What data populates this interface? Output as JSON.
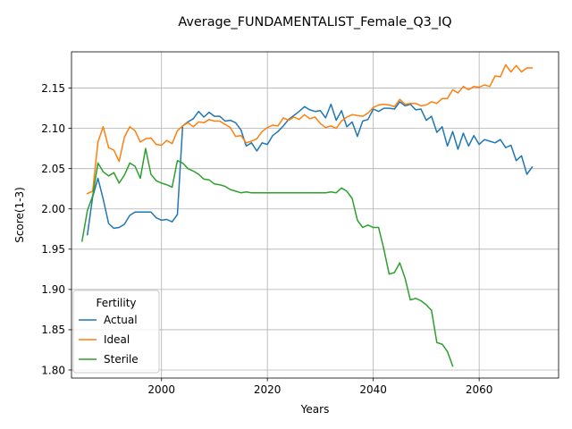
{
  "chart_data": {
    "type": "line",
    "title": "Average_FUNDAMENTALIST_Female_Q3_IQ",
    "xlabel": "Years",
    "ylabel": "Score(1-3)",
    "xlim": [
      1983,
      2075
    ],
    "ylim": [
      1.79,
      2.195
    ],
    "xticks": [
      2000,
      2020,
      2040,
      2060
    ],
    "yticks": [
      1.8,
      1.85,
      1.9,
      1.95,
      2.0,
      2.05,
      2.1,
      2.15
    ],
    "xtick_labels": [
      "2000",
      "2020",
      "2040",
      "2060"
    ],
    "ytick_labels": [
      "1.80",
      "1.85",
      "1.90",
      "1.95",
      "2.00",
      "2.05",
      "2.10",
      "2.15"
    ],
    "grid": true,
    "legend": {
      "title": "Fertility",
      "placement": "lower-left"
    },
    "series": [
      {
        "name": "Actual",
        "color": "#1f77b4",
        "x": [
          1986,
          1987,
          1988,
          1989,
          1990,
          1991,
          1992,
          1993,
          1994,
          1995,
          1996,
          1997,
          1998,
          1999,
          2000,
          2001,
          2002,
          2003,
          2004,
          2005,
          2006,
          2007,
          2008,
          2009,
          2010,
          2011,
          2012,
          2013,
          2014,
          2015,
          2016,
          2017,
          2018,
          2019,
          2020,
          2021,
          2022,
          2023,
          2024,
          2025,
          2026,
          2027,
          2028,
          2029,
          2030,
          2031,
          2032,
          2033,
          2034,
          2035,
          2036,
          2037,
          2038,
          2039,
          2040,
          2041,
          2042,
          2043,
          2044,
          2045,
          2046,
          2047,
          2048,
          2049,
          2050,
          2051,
          2052,
          2053,
          2054,
          2055,
          2056,
          2057,
          2058,
          2059,
          2060,
          2061,
          2062,
          2063,
          2064,
          2065,
          2066,
          2067,
          2068,
          2069,
          2070
        ],
        "y": [
          1.968,
          2.015,
          2.038,
          2.012,
          1.982,
          1.976,
          1.977,
          1.981,
          1.992,
          1.996,
          1.996,
          1.996,
          1.996,
          1.989,
          1.986,
          1.987,
          1.984,
          1.993,
          2.103,
          2.108,
          2.112,
          2.121,
          2.114,
          2.12,
          2.115,
          2.115,
          2.109,
          2.11,
          2.107,
          2.098,
          2.078,
          2.082,
          2.072,
          2.082,
          2.08,
          2.091,
          2.096,
          2.103,
          2.111,
          2.116,
          2.121,
          2.127,
          2.123,
          2.121,
          2.122,
          2.113,
          2.13,
          2.11,
          2.122,
          2.102,
          2.108,
          2.09,
          2.109,
          2.111,
          2.124,
          2.121,
          2.125,
          2.125,
          2.124,
          2.133,
          2.128,
          2.13,
          2.123,
          2.124,
          2.11,
          2.115,
          2.095,
          2.102,
          2.078,
          2.096,
          2.074,
          2.094,
          2.078,
          2.091,
          2.08,
          2.086,
          2.084,
          2.082,
          2.086,
          2.076,
          2.079,
          2.06,
          2.066,
          2.043,
          2.052
        ]
      },
      {
        "name": "Ideal",
        "color": "#ff7f0e",
        "x": [
          1986,
          1987,
          1988,
          1989,
          1990,
          1991,
          1992,
          1993,
          1994,
          1995,
          1996,
          1997,
          1998,
          1999,
          2000,
          2001,
          2002,
          2003,
          2004,
          2005,
          2006,
          2007,
          2008,
          2009,
          2010,
          2011,
          2012,
          2013,
          2014,
          2015,
          2016,
          2017,
          2018,
          2019,
          2020,
          2021,
          2022,
          2023,
          2024,
          2025,
          2026,
          2027,
          2028,
          2029,
          2030,
          2031,
          2032,
          2033,
          2034,
          2035,
          2036,
          2037,
          2038,
          2039,
          2040,
          2041,
          2042,
          2043,
          2044,
          2045,
          2046,
          2047,
          2048,
          2049,
          2050,
          2051,
          2052,
          2053,
          2054,
          2055,
          2056,
          2057,
          2058,
          2059,
          2060,
          2061,
          2062,
          2063,
          2064,
          2065,
          2066,
          2067,
          2068,
          2069,
          2070
        ],
        "y": [
          2.019,
          2.022,
          2.083,
          2.102,
          2.076,
          2.073,
          2.059,
          2.089,
          2.102,
          2.097,
          2.083,
          2.087,
          2.088,
          2.08,
          2.079,
          2.085,
          2.081,
          2.097,
          2.103,
          2.107,
          2.102,
          2.108,
          2.107,
          2.111,
          2.109,
          2.109,
          2.105,
          2.101,
          2.09,
          2.091,
          2.082,
          2.084,
          2.087,
          2.096,
          2.101,
          2.104,
          2.103,
          2.113,
          2.11,
          2.114,
          2.111,
          2.117,
          2.112,
          2.114,
          2.106,
          2.101,
          2.103,
          2.1,
          2.109,
          2.114,
          2.117,
          2.116,
          2.115,
          2.119,
          2.126,
          2.129,
          2.13,
          2.129,
          2.127,
          2.136,
          2.13,
          2.131,
          2.131,
          2.128,
          2.129,
          2.133,
          2.131,
          2.137,
          2.137,
          2.148,
          2.144,
          2.152,
          2.148,
          2.152,
          2.151,
          2.154,
          2.152,
          2.165,
          2.164,
          2.179,
          2.17,
          2.178,
          2.17,
          2.175,
          2.175
        ]
      },
      {
        "name": "Sterile",
        "color": "#2ca02c",
        "x": [
          1985,
          1986,
          1987,
          1988,
          1989,
          1990,
          1991,
          1992,
          1993,
          1994,
          1995,
          1996,
          1997,
          1998,
          1999,
          2000,
          2001,
          2002,
          2003,
          2004,
          2005,
          2006,
          2007,
          2008,
          2009,
          2010,
          2011,
          2012,
          2013,
          2014,
          2015,
          2016,
          2017,
          2018,
          2019,
          2020,
          2021,
          2022,
          2023,
          2024,
          2025,
          2026,
          2027,
          2028,
          2029,
          2030,
          2031,
          2032,
          2033,
          2034,
          2035,
          2036,
          2037,
          2038,
          2039,
          2040,
          2041,
          2042,
          2043,
          2044,
          2045,
          2046,
          2047,
          2048,
          2049,
          2050,
          2051,
          2052,
          2053,
          2054,
          2055
        ],
        "y": [
          1.96,
          1.998,
          2.016,
          2.057,
          2.046,
          2.041,
          2.045,
          2.032,
          2.042,
          2.057,
          2.053,
          2.038,
          2.075,
          2.043,
          2.035,
          2.032,
          2.03,
          2.027,
          2.06,
          2.057,
          2.05,
          2.047,
          2.043,
          2.037,
          2.036,
          2.031,
          2.03,
          2.028,
          2.024,
          2.022,
          2.02,
          2.021,
          2.02,
          2.02,
          2.02,
          2.02,
          2.02,
          2.02,
          2.02,
          2.02,
          2.02,
          2.02,
          2.02,
          2.02,
          2.02,
          2.02,
          2.02,
          2.021,
          2.02,
          2.026,
          2.022,
          2.013,
          1.986,
          1.977,
          1.98,
          1.977,
          1.977,
          1.95,
          1.919,
          1.921,
          1.933,
          1.914,
          1.887,
          1.889,
          1.886,
          1.881,
          1.874,
          1.834,
          1.832,
          1.823,
          1.805
        ]
      }
    ]
  }
}
